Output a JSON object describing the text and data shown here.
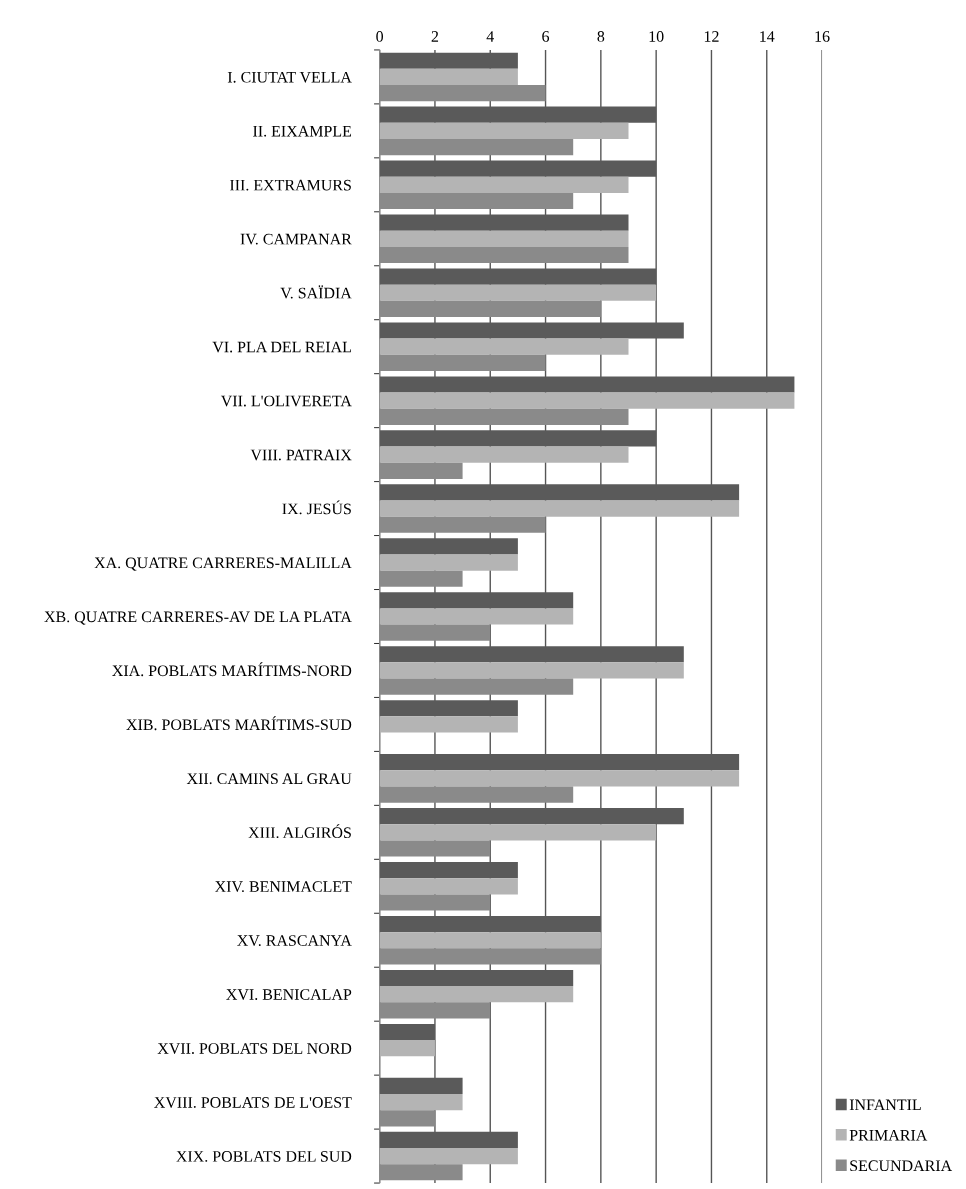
{
  "chart_data": {
    "type": "bar",
    "orientation": "horizontal",
    "categories": [
      "I. CIUTAT VELLA",
      "II. EIXAMPLE",
      "III. EXTRAMURS",
      "IV. CAMPANAR",
      "V. SAÏDIA",
      "VI. PLA DEL REIAL",
      "VII. L'OLIVERETA",
      "VIII. PATRAIX",
      "IX. JESÚS",
      "XA. QUATRE CARRERES-MALILLA",
      "XB. QUATRE CARRERES-AV DE LA PLATA",
      "XIA. POBLATS MARÍTIMS-NORD",
      "XIB. POBLATS MARÍTIMS-SUD",
      "XII. CAMINS AL GRAU",
      "XIII. ALGIRÓS",
      "XIV. BENIMACLET",
      "XV. RASCANYA",
      "XVI. BENICALAP",
      "XVII. POBLATS DEL NORD",
      "XVIII. POBLATS DE L'OEST",
      "XIX. POBLATS DEL SUD"
    ],
    "series": [
      {
        "name": "INFANTIL",
        "color": "#5a5a5a",
        "values": [
          5,
          10,
          10,
          9,
          10,
          11,
          15,
          10,
          13,
          5,
          7,
          11,
          5,
          13,
          11,
          5,
          8,
          7,
          2,
          3,
          5
        ]
      },
      {
        "name": "PRIMARIA",
        "color": "#b4b4b4",
        "values": [
          5,
          9,
          9,
          9,
          10,
          9,
          15,
          9,
          13,
          5,
          7,
          11,
          5,
          13,
          10,
          5,
          8,
          7,
          2,
          3,
          5
        ]
      },
      {
        "name": "SECUNDARIA",
        "color": "#8a8a8a",
        "values": [
          6,
          7,
          7,
          9,
          8,
          6,
          9,
          3,
          6,
          3,
          4,
          7,
          0,
          7,
          4,
          4,
          8,
          4,
          0,
          2,
          3
        ]
      }
    ],
    "xlim": [
      0,
      16
    ],
    "xticks": [
      0,
      2,
      4,
      6,
      8,
      10,
      12,
      14,
      16
    ],
    "grid": "x",
    "legend": "bottom right"
  }
}
